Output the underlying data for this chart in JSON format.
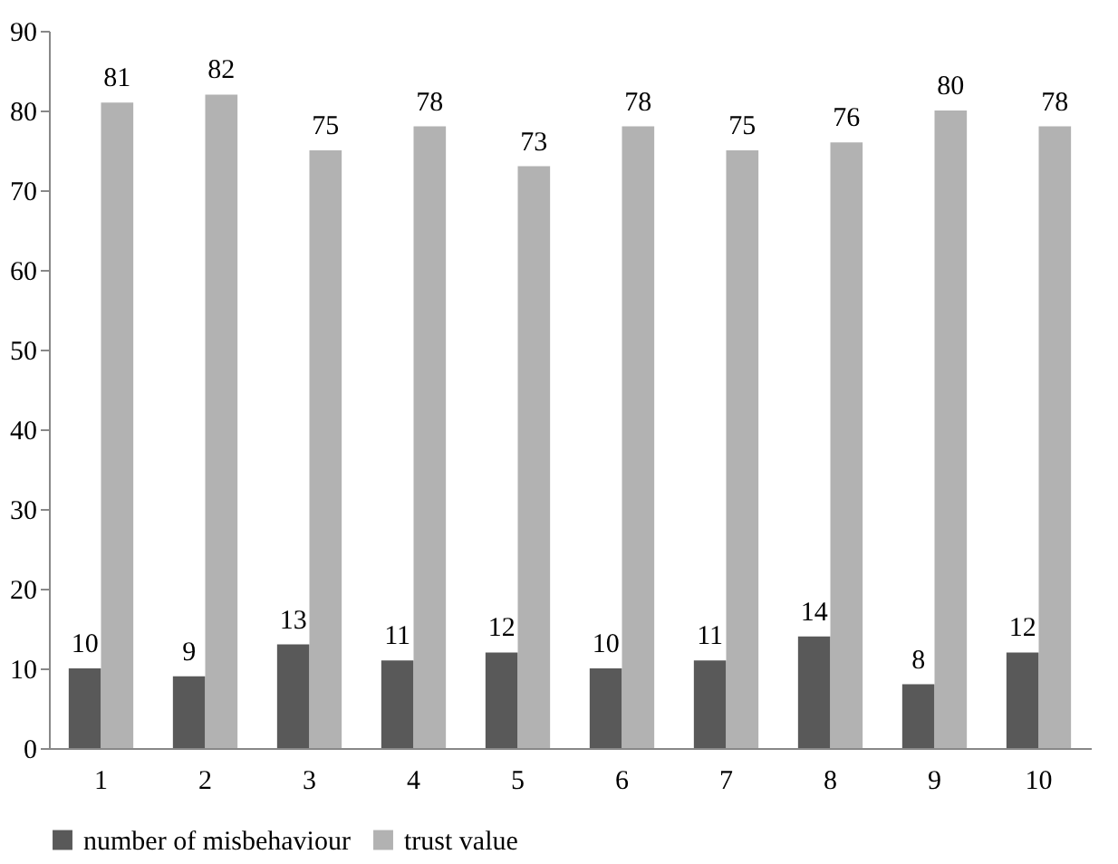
{
  "chart_data": {
    "type": "bar",
    "categories": [
      "1",
      "2",
      "3",
      "4",
      "5",
      "6",
      "7",
      "8",
      "9",
      "10"
    ],
    "series": [
      {
        "name": "number of misbehaviour",
        "color": "#595959",
        "values": [
          10,
          9,
          13,
          11,
          12,
          10,
          11,
          14,
          8,
          12
        ]
      },
      {
        "name": "trust value",
        "color": "#b2b2b2",
        "values": [
          81,
          82,
          75,
          78,
          73,
          78,
          75,
          76,
          80,
          78
        ]
      }
    ],
    "ylim": [
      0,
      90
    ],
    "yticks": [
      0,
      10,
      20,
      30,
      40,
      50,
      60,
      70,
      80,
      90
    ],
    "data_labels": true,
    "grid": false,
    "legend": "bottom"
  }
}
